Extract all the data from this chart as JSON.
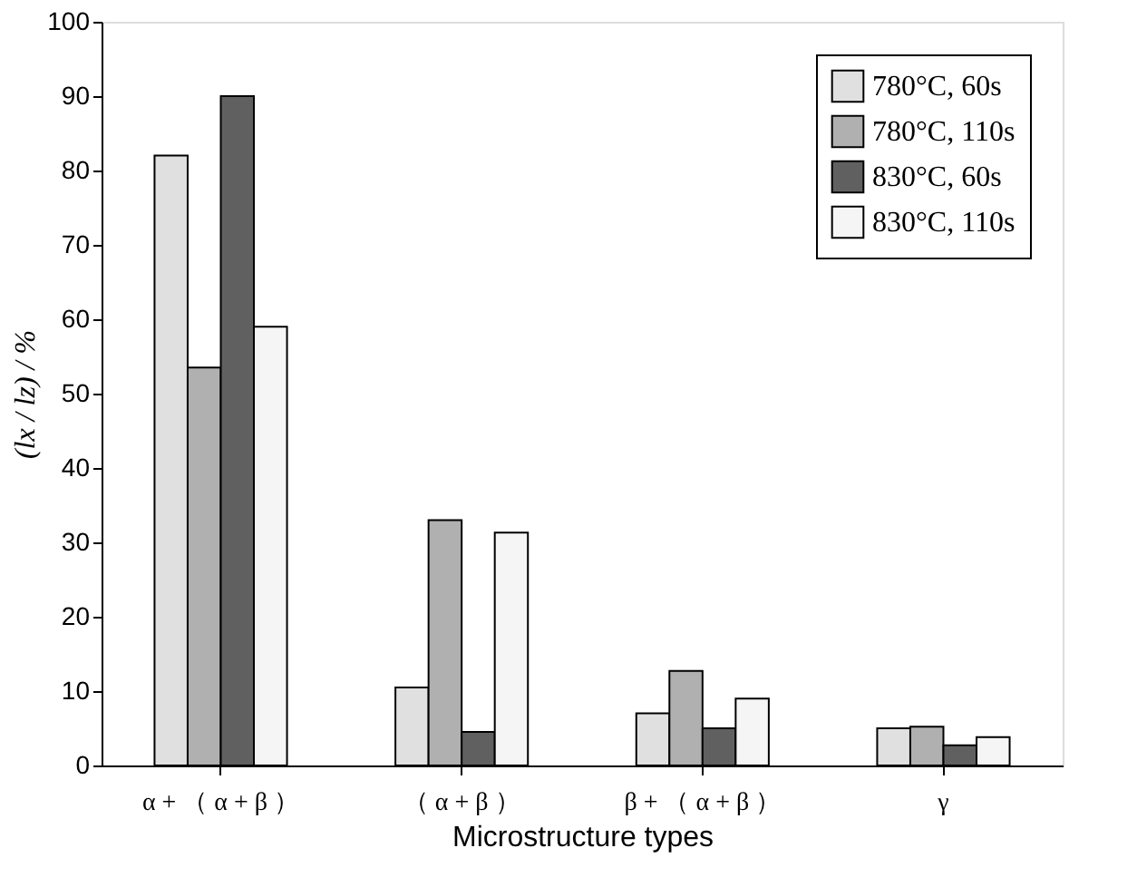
{
  "chart_data": {
    "type": "bar",
    "categories": [
      "α + （ α + β ）",
      "（ α + β ）",
      "β + （ α + β ）",
      "γ"
    ],
    "series": [
      {
        "name": "780°C, 60s",
        "color": "#e0e0e0",
        "values": [
          82,
          10.5,
          7,
          5
        ]
      },
      {
        "name": "780°C, 110s",
        "color": "#b0b0b0",
        "values": [
          53.5,
          33,
          12.7,
          5.2
        ]
      },
      {
        "name": "830°C, 60s",
        "color": "#606060",
        "values": [
          90,
          4.5,
          5,
          2.7
        ]
      },
      {
        "name": "830°C, 110s",
        "color": "#f5f5f5",
        "values": [
          59,
          31.3,
          9,
          3.8
        ]
      }
    ],
    "xlabel": "Microstructure types",
    "ylabel": "(lx / lz) / %",
    "ylim": [
      0,
      100
    ],
    "yticks": [
      0,
      10,
      20,
      30,
      40,
      50,
      60,
      70,
      80,
      90,
      100
    ],
    "grid": false,
    "legend": "top right"
  }
}
